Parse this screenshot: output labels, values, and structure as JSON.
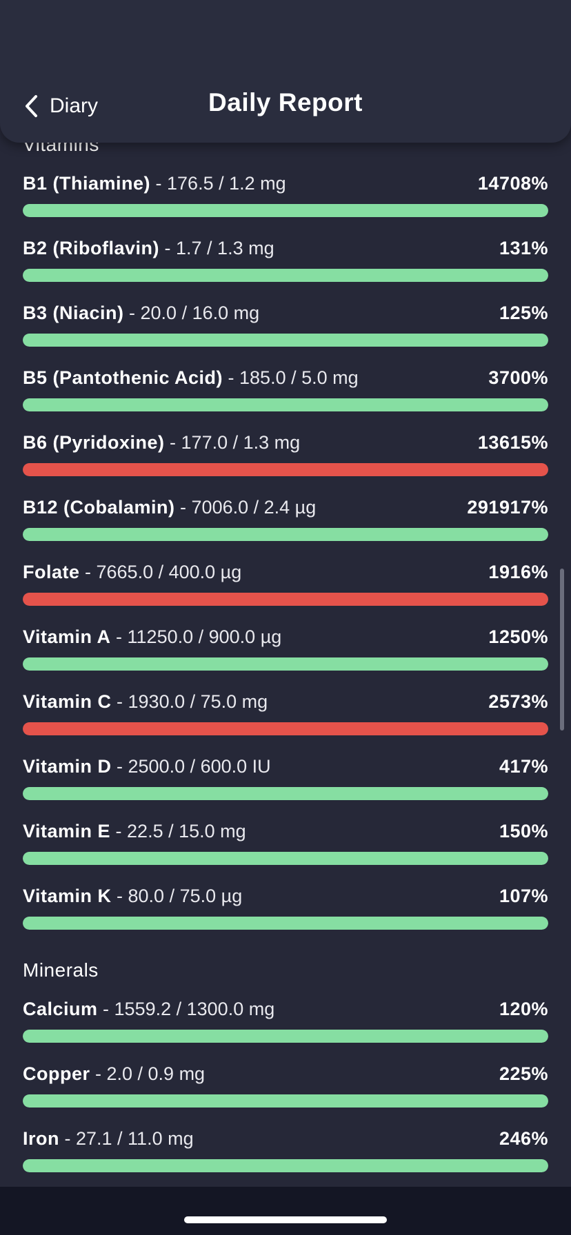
{
  "header": {
    "back_label": "Diary",
    "title": "Daily Report"
  },
  "colors": {
    "ok": "#86dea2",
    "over": "#e5534b"
  },
  "sections": [
    {
      "label": "Vitamins",
      "items": [
        {
          "name": "B1 (Thiamine)",
          "amount": " - 176.5 / 1.2 mg",
          "percent": "14708%",
          "status": "ok"
        },
        {
          "name": "B2 (Riboflavin)",
          "amount": " - 1.7 / 1.3 mg",
          "percent": "131%",
          "status": "ok"
        },
        {
          "name": "B3 (Niacin)",
          "amount": " - 20.0 / 16.0 mg",
          "percent": "125%",
          "status": "ok"
        },
        {
          "name": "B5 (Pantothenic Acid)",
          "amount": " - 185.0 / 5.0 mg",
          "percent": "3700%",
          "status": "ok"
        },
        {
          "name": "B6 (Pyridoxine)",
          "amount": " - 177.0 / 1.3 mg",
          "percent": "13615%",
          "status": "over"
        },
        {
          "name": "B12 (Cobalamin)",
          "amount": " - 7006.0 / 2.4 µg",
          "percent": "291917%",
          "status": "ok"
        },
        {
          "name": "Folate",
          "amount": " - 7665.0 / 400.0 µg",
          "percent": "1916%",
          "status": "over"
        },
        {
          "name": "Vitamin A",
          "amount": " - 11250.0 / 900.0 µg",
          "percent": "1250%",
          "status": "ok"
        },
        {
          "name": "Vitamin C",
          "amount": " - 1930.0 / 75.0 mg",
          "percent": "2573%",
          "status": "over"
        },
        {
          "name": "Vitamin D",
          "amount": " - 2500.0 / 600.0 IU",
          "percent": "417%",
          "status": "ok"
        },
        {
          "name": "Vitamin E",
          "amount": " - 22.5 / 15.0 mg",
          "percent": "150%",
          "status": "ok"
        },
        {
          "name": "Vitamin K",
          "amount": " - 80.0 / 75.0 µg",
          "percent": "107%",
          "status": "ok"
        }
      ]
    },
    {
      "label": "Minerals",
      "items": [
        {
          "name": "Calcium",
          "amount": " - 1559.2 / 1300.0 mg",
          "percent": "120%",
          "status": "ok"
        },
        {
          "name": "Copper",
          "amount": " - 2.0 / 0.9 mg",
          "percent": "225%",
          "status": "ok"
        },
        {
          "name": "Iron",
          "amount": " - 27.1 / 11.0 mg",
          "percent": "246%",
          "status": "ok"
        }
      ]
    }
  ]
}
